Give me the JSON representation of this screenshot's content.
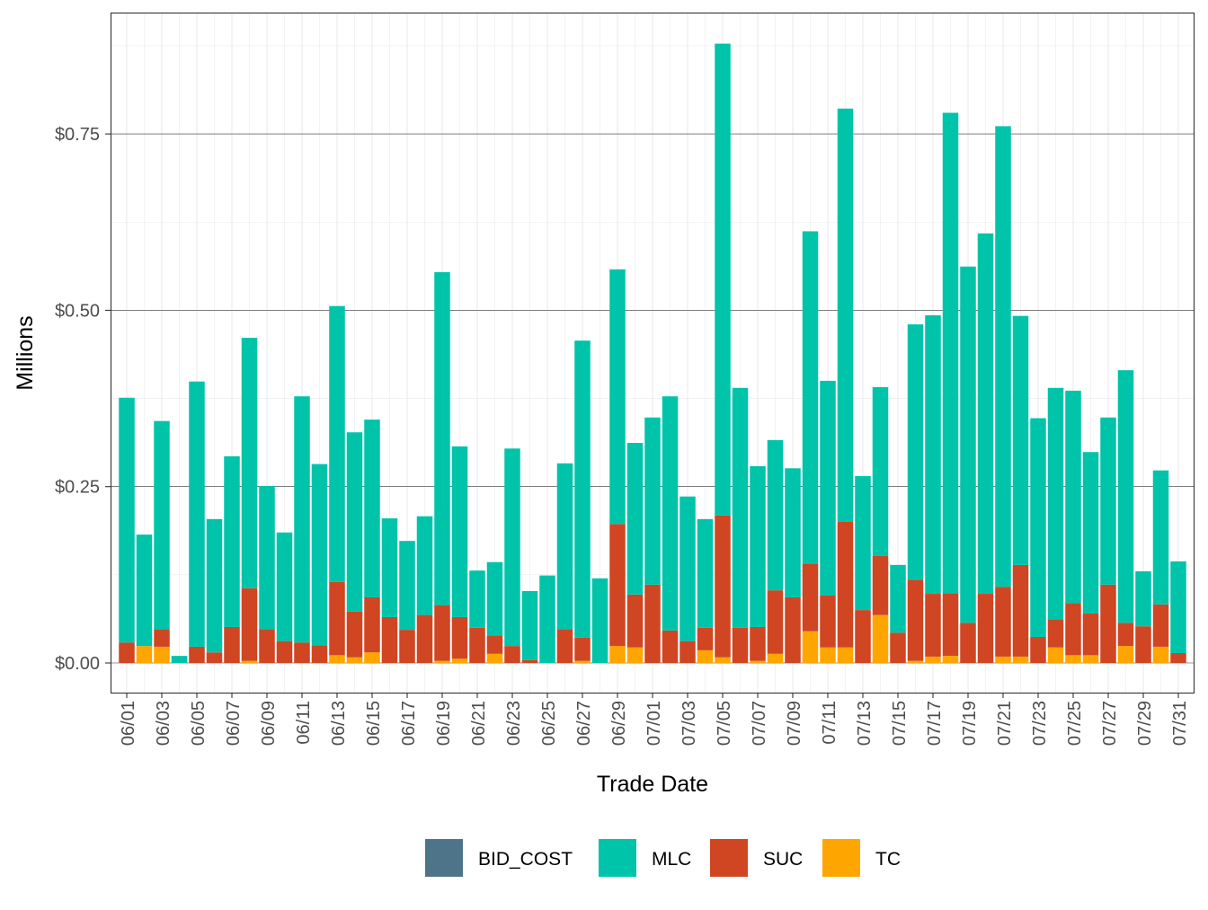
{
  "chart_data": {
    "type": "bar",
    "stacked": true,
    "title": "",
    "xlabel": "Trade Date",
    "ylabel": "Millions",
    "ylim": [
      -0.043,
      0.921
    ],
    "yticks": [
      0,
      0.25,
      0.5,
      0.75
    ],
    "ytick_labels": [
      "$0.00",
      "$0.25",
      "$0.50",
      "$0.75"
    ],
    "grid": true,
    "legend_position": "bottom",
    "categories": [
      "06/01",
      "06/02",
      "06/03",
      "06/04",
      "06/05",
      "06/06",
      "06/07",
      "06/08",
      "06/09",
      "06/10",
      "06/11",
      "06/12",
      "06/13",
      "06/14",
      "06/15",
      "06/16",
      "06/17",
      "06/18",
      "06/19",
      "06/20",
      "06/21",
      "06/22",
      "06/23",
      "06/24",
      "06/25",
      "06/26",
      "06/27",
      "06/28",
      "06/29",
      "06/30",
      "07/01",
      "07/02",
      "07/03",
      "07/04",
      "07/05",
      "07/06",
      "07/07",
      "07/08",
      "07/09",
      "07/10",
      "07/11",
      "07/12",
      "07/13",
      "07/14",
      "07/15",
      "07/16",
      "07/17",
      "07/18",
      "07/19",
      "07/20",
      "07/21",
      "07/22",
      "07/23",
      "07/24",
      "07/25",
      "07/26",
      "07/27",
      "07/28",
      "07/29",
      "07/30",
      "07/31"
    ],
    "xtick_labels": [
      "06/01",
      "06/03",
      "06/05",
      "06/07",
      "06/09",
      "06/11",
      "06/13",
      "06/15",
      "06/17",
      "06/19",
      "06/21",
      "06/23",
      "06/25",
      "06/27",
      "06/29",
      "07/01",
      "07/03",
      "07/05",
      "07/07",
      "07/09",
      "07/11",
      "07/13",
      "07/15",
      "07/17",
      "07/19",
      "07/21",
      "07/23",
      "07/25",
      "07/27",
      "07/29",
      "07/31"
    ],
    "series": [
      {
        "name": "BID_COST",
        "color": "#4E7489",
        "values": [
          0,
          0,
          0,
          0,
          0,
          0,
          0,
          0,
          0,
          0,
          0,
          0,
          0,
          0,
          0,
          0,
          0,
          0,
          0,
          0,
          0,
          0,
          0,
          0,
          0,
          0,
          0,
          0,
          0,
          0,
          0,
          0,
          0,
          0,
          0,
          0,
          0,
          0,
          0,
          0,
          0,
          0,
          0,
          0,
          0,
          0,
          0,
          0,
          0,
          0,
          0,
          0,
          0,
          0,
          0,
          0,
          0,
          0,
          0,
          0,
          0
        ]
      },
      {
        "name": "MLC",
        "color": "#00C4AA",
        "values": [
          0.347,
          0.158,
          0.295,
          0.01,
          0.376,
          0.189,
          0.242,
          0.355,
          0.203,
          0.154,
          0.349,
          0.257,
          0.391,
          0.254,
          0.252,
          0.14,
          0.126,
          0.14,
          0.472,
          0.242,
          0.081,
          0.104,
          0.28,
          0.098,
          0.124,
          0.235,
          0.421,
          0.12,
          0.361,
          0.215,
          0.237,
          0.332,
          0.205,
          0.154,
          0.669,
          0.34,
          0.228,
          0.213,
          0.183,
          0.471,
          0.304,
          0.586,
          0.19,
          0.239,
          0.096,
          0.362,
          0.395,
          0.681,
          0.505,
          0.511,
          0.653,
          0.353,
          0.31,
          0.328,
          0.301,
          0.229,
          0.237,
          0.358,
          0.078,
          0.19,
          0.13
        ]
      },
      {
        "name": "SUC",
        "color": "#D04522",
        "values": [
          0.029,
          0,
          0.025,
          0,
          0.023,
          0.015,
          0.051,
          0.103,
          0.048,
          0.031,
          0.029,
          0.025,
          0.104,
          0.065,
          0.078,
          0.065,
          0.047,
          0.068,
          0.079,
          0.059,
          0.05,
          0.026,
          0.024,
          0.004,
          0,
          0.048,
          0.033,
          0,
          0.173,
          0.075,
          0.111,
          0.046,
          0.031,
          0.032,
          0.201,
          0.05,
          0.048,
          0.09,
          0.093,
          0.096,
          0.074,
          0.178,
          0.075,
          0.084,
          0.043,
          0.115,
          0.089,
          0.089,
          0.057,
          0.098,
          0.099,
          0.13,
          0.037,
          0.04,
          0.074,
          0.059,
          0.111,
          0.033,
          0.052,
          0.06,
          0.014
        ]
      },
      {
        "name": "TC",
        "color": "#FFA500",
        "values": [
          0,
          0.024,
          0.023,
          0,
          0,
          0,
          0,
          0.003,
          0,
          0,
          0,
          0,
          0.011,
          0.008,
          0.015,
          0,
          0,
          0,
          0.003,
          0.006,
          0,
          0.013,
          0,
          0,
          0,
          0,
          0.003,
          0,
          0.024,
          0.022,
          0,
          0,
          0,
          0.018,
          0.008,
          0,
          0.003,
          0.013,
          0,
          0.045,
          0.022,
          0.022,
          0,
          0.068,
          0,
          0.003,
          0.009,
          0.01,
          0,
          0,
          0.009,
          0.009,
          0,
          0.022,
          0.011,
          0.011,
          0,
          0.024,
          0,
          0.023,
          0
        ]
      }
    ],
    "stack_order_bottom_to_top": [
      "TC",
      "SUC",
      "MLC",
      "BID_COST"
    ]
  }
}
